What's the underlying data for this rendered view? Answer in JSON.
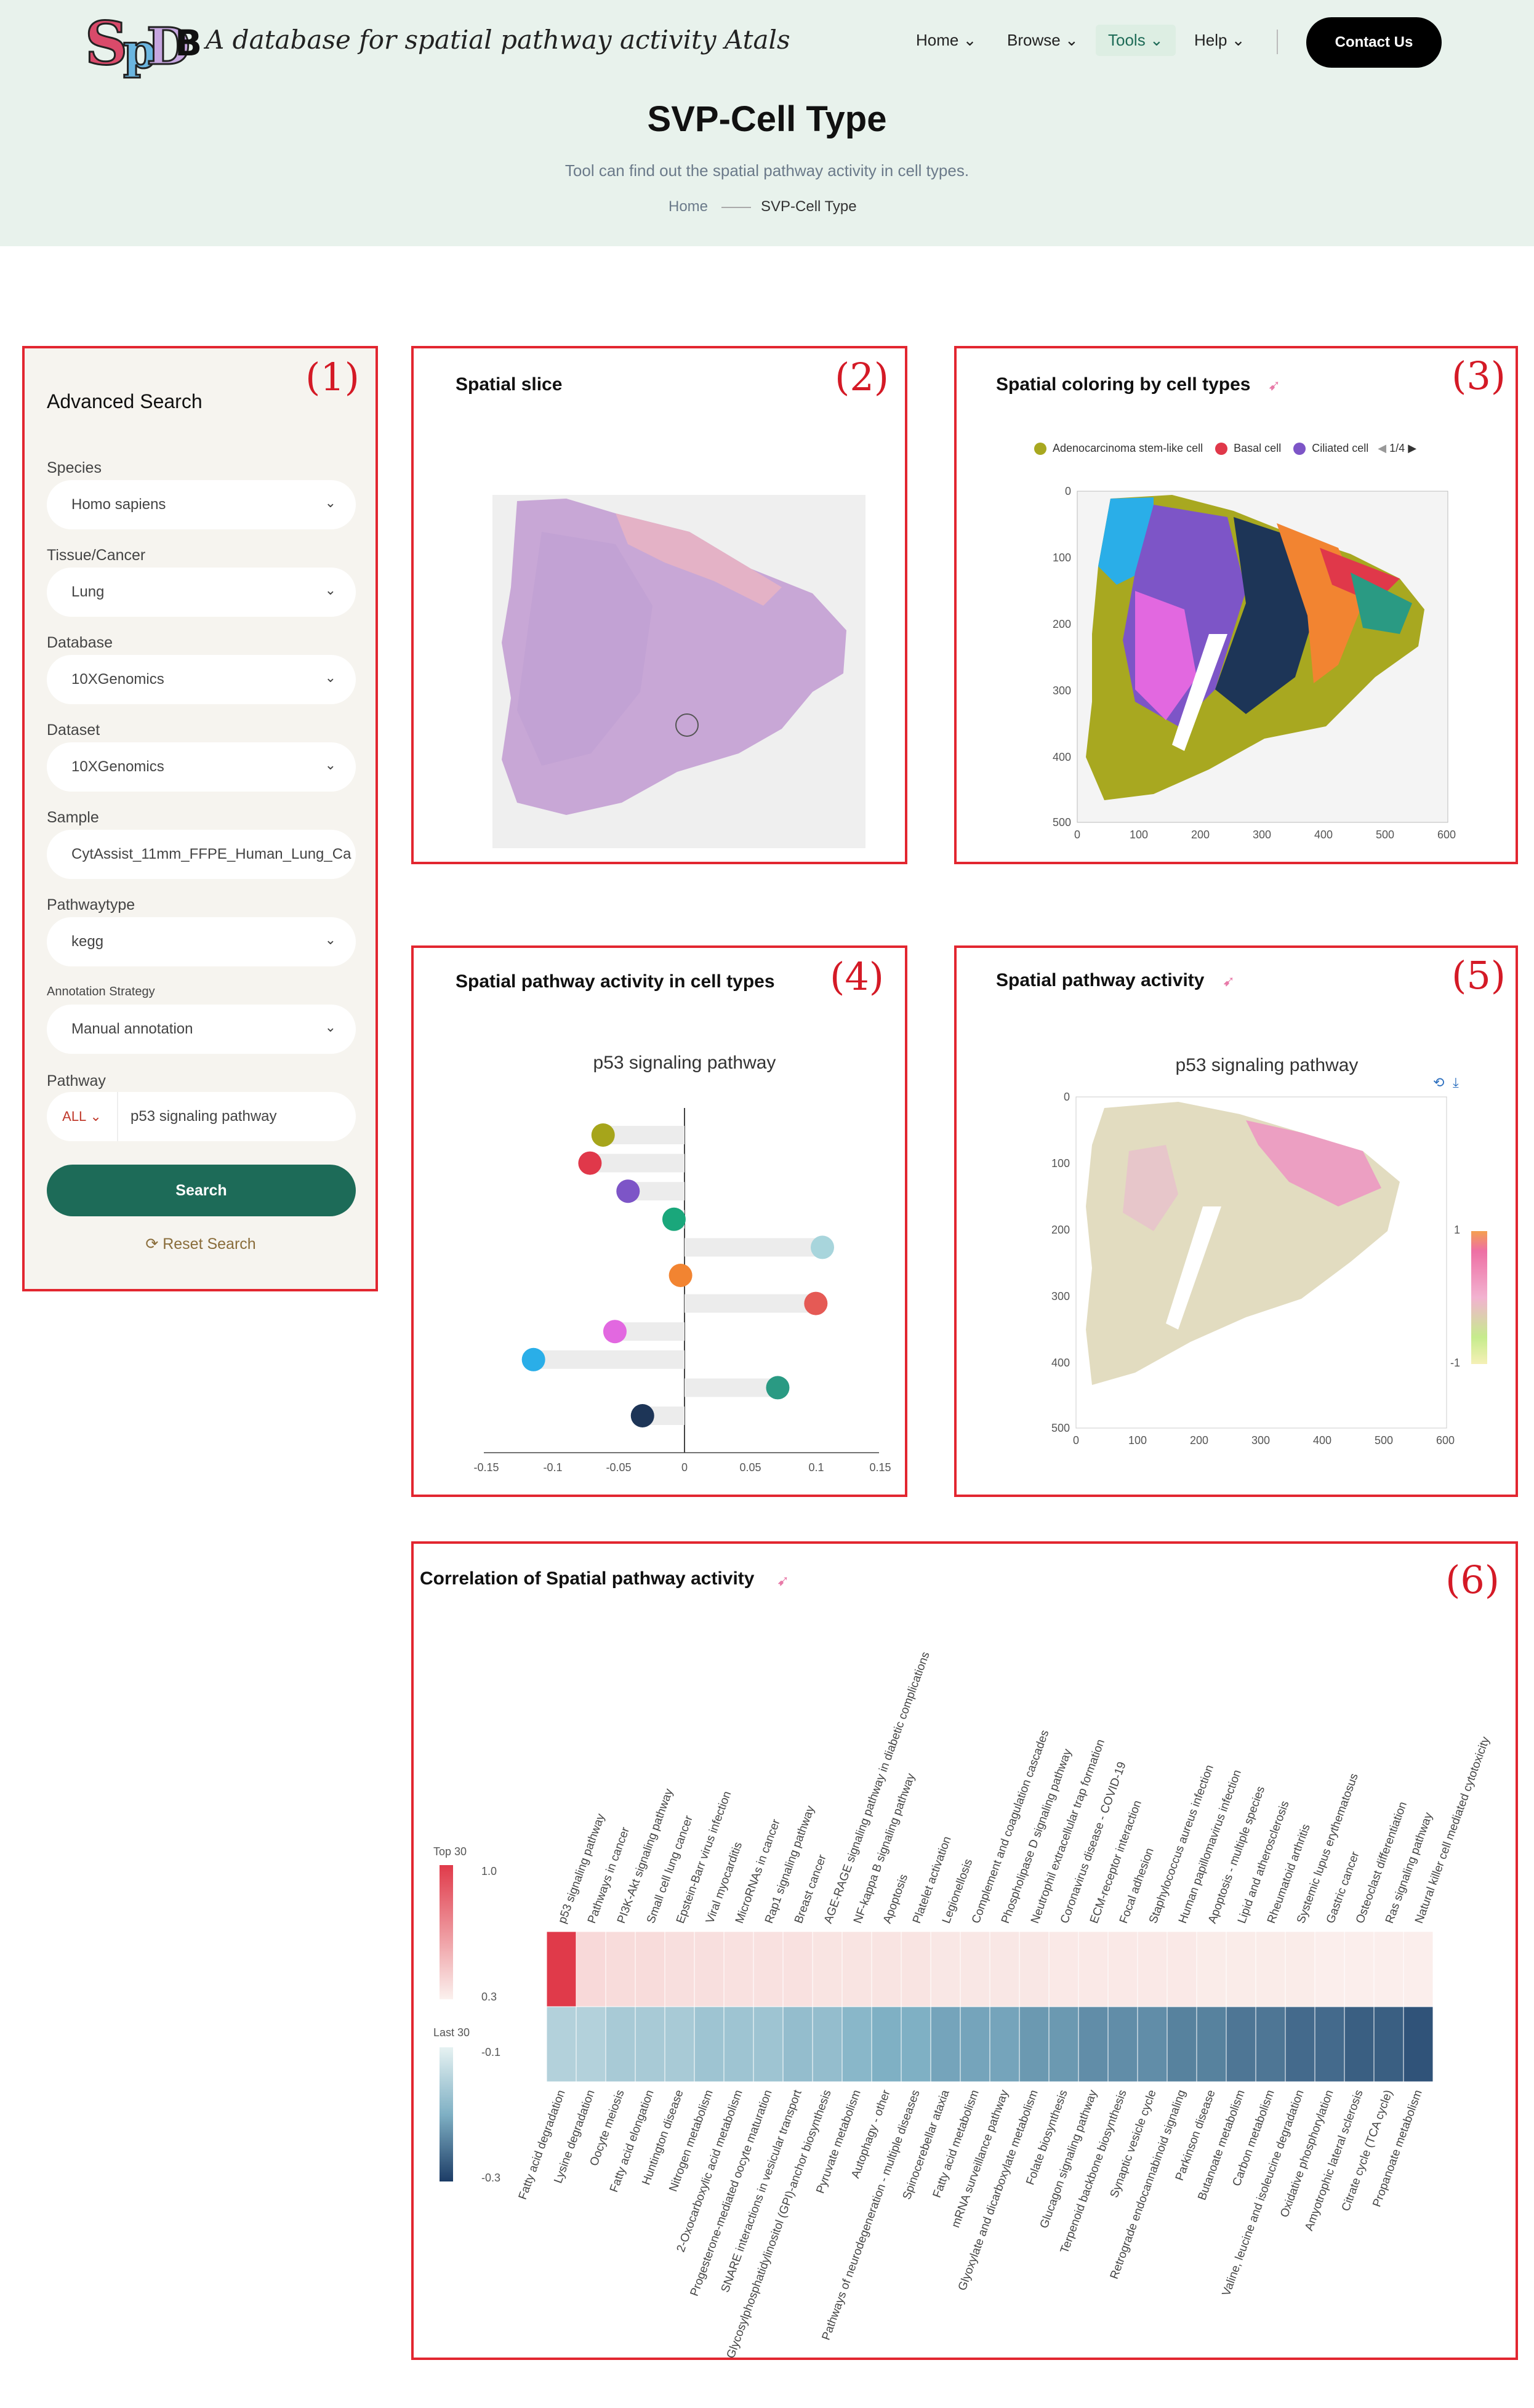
{
  "header": {
    "logo_text": "SpDB",
    "tagline": "A database for spatial pathway activity Atals",
    "nav": [
      "Home",
      "Browse",
      "Tools",
      "Help"
    ],
    "contact": "Contact Us",
    "page_title": "SVP-Cell Type",
    "subtitle": "Tool can find out the spatial pathway activity in cell types.",
    "breadcrumb": [
      "Home",
      "SVP-Cell Type"
    ]
  },
  "panel_numbers": [
    "(1)",
    "(2)",
    "(3)",
    "(4)",
    "(5)",
    "(6)"
  ],
  "search": {
    "title": "Advanced Search",
    "fields": [
      {
        "label": "Species",
        "value": "Homo sapiens"
      },
      {
        "label": "Tissue/Cancer",
        "value": "Lung"
      },
      {
        "label": "Database",
        "value": "10XGenomics"
      },
      {
        "label": "Dataset",
        "value": "10XGenomics"
      },
      {
        "label": "Sample",
        "value": "CytAssist_11mm_FFPE_Human_Lung_Ca"
      },
      {
        "label": "Pathwaytype",
        "value": "kegg"
      },
      {
        "label": "Annotation Strategy",
        "value": "Manual annotation"
      }
    ],
    "pathway_label": "Pathway",
    "pathway_scope": "ALL",
    "pathway_value": "p53 signaling pathway",
    "search_button": "Search",
    "reset_button": "Reset Search"
  },
  "slice": {
    "title": "Spatial slice"
  },
  "coloring": {
    "title": "Spatial coloring by cell types",
    "legend": [
      {
        "name": "Adenocarcinoma stem-like cell",
        "color": "#a8a820"
      },
      {
        "name": "Basal cell",
        "color": "#e0384a"
      },
      {
        "name": "Ciliated cell",
        "color": "#7d55c7"
      }
    ],
    "legend_page": "1/4",
    "x_ticks": [
      "0",
      "100",
      "200",
      "300",
      "400",
      "500",
      "600"
    ],
    "y_ticks": [
      "0",
      "100",
      "200",
      "300",
      "400",
      "500"
    ]
  },
  "activity_celltypes": {
    "title": "Spatial pathway activity in cell types",
    "chart_title": "p53 signaling pathway",
    "x_ticks": [
      "-0.15",
      "-0.1",
      "-0.05",
      "0",
      "0.05",
      "0.1",
      "0.15"
    ]
  },
  "activity_spatial": {
    "title": "Spatial pathway activity",
    "chart_title": "p53 signaling pathway",
    "x_ticks": [
      "0",
      "100",
      "200",
      "300",
      "400",
      "500",
      "600"
    ],
    "y_ticks": [
      "0",
      "100",
      "200",
      "300",
      "400",
      "500"
    ],
    "scale_max": "1",
    "scale_min": "-1"
  },
  "correlation": {
    "title": "Correlation of Spatial pathway activity",
    "top_label": "Top 30",
    "top_max": "1.0",
    "top_min": "0.3",
    "last_label": "Last 30",
    "last_max": "-0.1",
    "last_min": "-0.3"
  },
  "chart_data": [
    {
      "type": "scatter",
      "title": "p53 signaling pathway",
      "xlim": [
        -0.15,
        0.15
      ],
      "values": [
        -0.062,
        -0.072,
        -0.043,
        -0.008,
        0.105,
        -0.003,
        0.1,
        -0.053,
        -0.115,
        0.071,
        -0.032
      ],
      "colors": [
        "#a6a51b",
        "#e0384a",
        "#7d55c7",
        "#1aa77b",
        "#a8d5dc",
        "#f28431",
        "#e55a55",
        "#e268e0",
        "#2aaee8",
        "#2a9a83",
        "#1d3557"
      ]
    },
    {
      "type": "heatmap",
      "title": "Correlation of Spatial pathway activity",
      "top_30": {
        "pathways": [
          "p53 signaling pathway",
          "Pathways in cancer",
          "PI3K-Akt signaling pathway",
          "Small cell lung cancer",
          "Epstein-Barr virus infection",
          "Viral myocarditis",
          "MicroRNAs in cancer",
          "Rap1 signaling pathway",
          "Breast cancer",
          "AGE-RAGE signaling pathway in diabetic complications",
          "NF-kappa B signaling pathway",
          "Apoptosis",
          "Platelet activation",
          "Legionellosis",
          "Complement and coagulation cascades",
          "Phospholipase D signaling pathway",
          "Neutrophil extracellular trap formation",
          "Coronavirus disease - COVID-19",
          "ECM-receptor interaction",
          "Focal adhesion",
          "Staphylococcus aureus infection",
          "Human papillomavirus infection",
          "Apoptosis - multiple species",
          "Lipid and atherosclerosis",
          "Rheumatoid arthritis",
          "Systemic lupus erythematosus",
          "Gastric cancer",
          "Osteoclast differentiation",
          "Ras signaling pathway",
          "Natural killer cell mediated cytotoxicity"
        ],
        "values": [
          1.0,
          0.39,
          0.38,
          0.38,
          0.37,
          0.37,
          0.36,
          0.36,
          0.36,
          0.35,
          0.35,
          0.35,
          0.35,
          0.34,
          0.34,
          0.34,
          0.34,
          0.33,
          0.33,
          0.33,
          0.33,
          0.33,
          0.32,
          0.32,
          0.32,
          0.32,
          0.31,
          0.31,
          0.31,
          0.31
        ]
      },
      "last_30": {
        "pathways": [
          "Fatty acid degradation",
          "Lysine degradation",
          "Oocyte meiosis",
          "Fatty acid elongation",
          "Huntington disease",
          "Nitrogen metabolism",
          "2-Oxocarboxylic acid metabolism",
          "Progesterone-mediated oocyte maturation",
          "SNARE interactions in vesicular transport",
          "Glycosylphosphatidylinositol (GPI)-anchor biosynthesis",
          "Pyruvate metabolism",
          "Autophagy - other",
          "Pathways of neurodegeneration - multiple diseases",
          "Spinocerebellar ataxia",
          "Fatty acid metabolism",
          "mRNA surveillance pathway",
          "Glyoxylate and dicarboxylate metabolism",
          "Folate biosynthesis",
          "Glucagon signaling pathway",
          "Terpenoid backbone biosynthesis",
          "Synaptic vesicle cycle",
          "Retrograde endocannabinoid signaling",
          "Parkinson disease",
          "Butanoate metabolism",
          "Carbon metabolism",
          "Valine, leucine and isoleucine degradation",
          "Oxidative phosphorylation",
          "Amyotrophic lateral sclerosis",
          "Citrate cycle (TCA cycle)",
          "Propanoate metabolism"
        ],
        "values": [
          -0.15,
          -0.15,
          -0.16,
          -0.16,
          -0.16,
          -0.17,
          -0.17,
          -0.17,
          -0.18,
          -0.18,
          -0.19,
          -0.2,
          -0.2,
          -0.21,
          -0.21,
          -0.21,
          -0.22,
          -0.22,
          -0.23,
          -0.23,
          -0.23,
          -0.24,
          -0.24,
          -0.25,
          -0.25,
          -0.26,
          -0.26,
          -0.27,
          -0.27,
          -0.28
        ]
      }
    }
  ]
}
